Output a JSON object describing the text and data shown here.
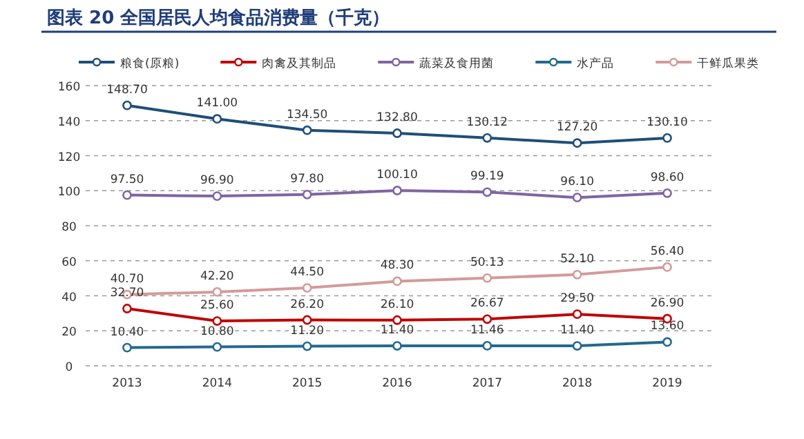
{
  "chart_data": {
    "type": "line",
    "title": "图表 20   全国居民人均食品消费量（千克）",
    "categories": [
      "2013",
      "2014",
      "2015",
      "2016",
      "2017",
      "2018",
      "2019"
    ],
    "series": [
      {
        "name": "粮食(原粮)",
        "color": "#1f4e79",
        "values": [
          148.7,
          141.0,
          134.5,
          132.8,
          130.12,
          127.2,
          130.1
        ],
        "value_labels": [
          "148.70",
          "141.00",
          "134.50",
          "132.80",
          "130.12",
          "127.20",
          "130.10"
        ]
      },
      {
        "name": "肉禽及其制品",
        "color": "#c00000",
        "values": [
          32.7,
          25.6,
          26.2,
          26.1,
          26.67,
          29.5,
          26.9
        ],
        "value_labels": [
          "32.70",
          "25.60",
          "26.20",
          "26.10",
          "26.67",
          "29.50",
          "26.90"
        ]
      },
      {
        "name": "蔬菜及食用菌",
        "color": "#8064a2",
        "values": [
          97.5,
          96.9,
          97.8,
          100.1,
          99.19,
          96.1,
          98.6
        ],
        "value_labels": [
          "97.50",
          "96.90",
          "97.80",
          "100.10",
          "99.19",
          "96.10",
          "98.60"
        ]
      },
      {
        "name": "水产品",
        "color": "#23698f",
        "values": [
          10.4,
          10.8,
          11.2,
          11.4,
          11.46,
          11.4,
          13.6
        ],
        "value_labels": [
          "10.40",
          "10.80",
          "11.20",
          "11.40",
          "11.46",
          "11.40",
          "13.60"
        ]
      },
      {
        "name": "干鲜瓜果类",
        "color": "#d49a9a",
        "values": [
          40.7,
          42.2,
          44.5,
          48.3,
          50.13,
          52.1,
          56.4
        ],
        "value_labels": [
          "40.70",
          "42.20",
          "44.50",
          "48.30",
          "50.13",
          "52.10",
          "56.40"
        ]
      }
    ],
    "ylim": [
      0,
      160
    ],
    "yticks": [
      0,
      20,
      40,
      60,
      80,
      100,
      120,
      140,
      160
    ],
    "grid": "y",
    "legend": "top",
    "marker": "circle",
    "line_style": "solid"
  }
}
